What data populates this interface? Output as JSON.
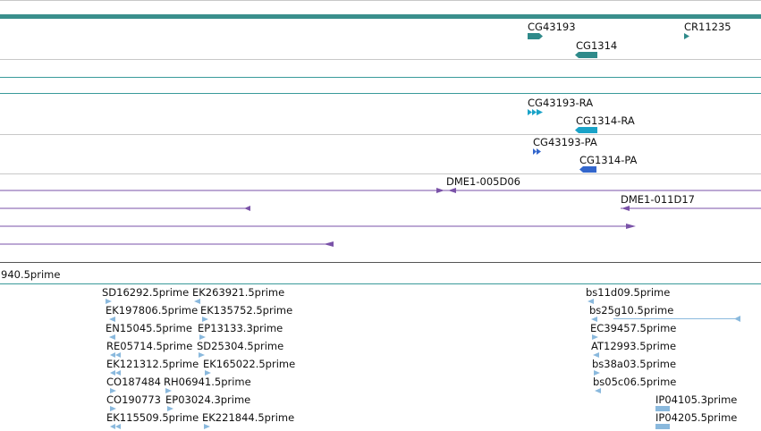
{
  "colors": {
    "top_bar": "#3a8f8c",
    "gene": "#2f8a8a",
    "transcript_ra": "#1aa3c8",
    "transcript_pa": "#3366cc",
    "est_purple": "#7a52a8",
    "est_light": "#8ab9dd",
    "separator": "#c8c8c8",
    "teal_line": "#3a9a9a"
  },
  "genes": {
    "cg43193": "CG43193",
    "cg1314": "CG1314",
    "cr11235": "CR11235"
  },
  "transcripts": {
    "cg43193_ra": "CG43193-RA",
    "cg1314_ra": "CG1314-RA",
    "cg43193_pa": "CG43193-PA",
    "cg1314_pa": "CG1314-PA"
  },
  "clones": {
    "dme1_005d06": "DME1-005D06",
    "dme1_011d17": "DME1-011D17"
  },
  "partial_label": "940.5prime",
  "ests_left": [
    "SD16292.5prime",
    "EK263921.5prime",
    "EK197806.5prime",
    "EK135752.5prime",
    "EN15045.5prime",
    "EP13133.3prime",
    "RE05714.5prime",
    "SD25304.5prime",
    "EK121312.5prime",
    "EK165022.5prime",
    "CO187484",
    "RH06941.5prime",
    "CO190773",
    "EP03024.3prime",
    "EK115509.5prime",
    "EK221844.5prime"
  ],
  "ests_right": [
    "bs11d09.5prime",
    "bs25g10.5prime",
    "EC39457.5prime",
    "AT12993.5prime",
    "bs38a03.5prime",
    "bs05c06.5prime",
    "IP04105.3prime",
    "IP04205.5prime"
  ]
}
